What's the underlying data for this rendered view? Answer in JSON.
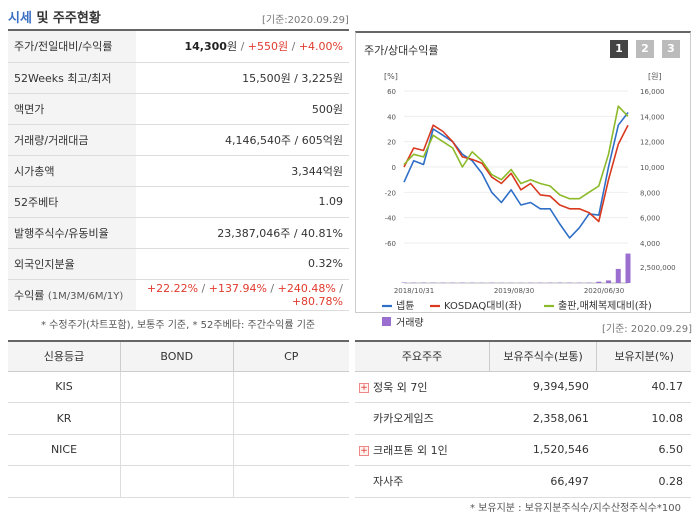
{
  "header": {
    "title_accent": "시세",
    "title_rest": " 및 주주현황",
    "date": "[기준:2020.09.29]"
  },
  "stats": [
    {
      "key": "stat-price",
      "label": "주가/전일대비/수익률",
      "price": "14,300",
      "unit": "원",
      "sep": " / ",
      "change": "+550원",
      "sep2": " / ",
      "rate": "+4.00%"
    },
    {
      "key": "stat-52w",
      "label": "52Weeks 최고/최저",
      "value": "15,500원 / 3,225원"
    },
    {
      "key": "stat-par",
      "label": "액면가",
      "value": "500원"
    },
    {
      "key": "stat-volume",
      "label": "거래량/거래대금",
      "value": "4,146,540주 / 605억원"
    },
    {
      "key": "stat-mktcap",
      "label": "시가총액",
      "value": "3,344억원"
    },
    {
      "key": "stat-beta",
      "label": "52주베타",
      "value": "1.09"
    },
    {
      "key": "stat-shares",
      "label": "발행주식수/유동비율",
      "value": "23,387,046주 / 40.81%"
    },
    {
      "key": "stat-foreign",
      "label": "외국인지분율",
      "value": "0.32%"
    },
    {
      "key": "stat-return",
      "label": "수익률",
      "label_sub": "(1M/3M/6M/1Y)",
      "r1": "+22.22%",
      "r2": "+137.94%",
      "r3": "+240.48%",
      "r4": "+80.78%",
      "sep": " / "
    }
  ],
  "note_left": "* 수정주가(차트포함), 보통주 기준, * 52주베타: 주간수익률 기준",
  "chart": {
    "title": "주가/상대수익률",
    "pages": [
      "1",
      "2",
      "3"
    ],
    "left_unit": "[%]",
    "right_unit": "[원]",
    "legend": {
      "s1": "넵튠",
      "s2": "KOSDAQ대비(좌)",
      "s3": "출판,매체복제대비(좌)",
      "s4": "거래량"
    },
    "colors": {
      "s1": "#2f6fc8",
      "s2": "#d9391f",
      "s3": "#8cba2a",
      "s4": "#9b6fd0"
    }
  },
  "chart_data": {
    "type": "line",
    "title": "주가/상대수익률",
    "x_labels": [
      "2018/10/31",
      "2019/08/30",
      "2020/06/30"
    ],
    "y_left": {
      "label": "%",
      "ticks": [
        60,
        40,
        20,
        0,
        -20,
        -40,
        -60
      ],
      "range": [
        -60,
        60
      ]
    },
    "y_right": {
      "label": "원",
      "ticks": [
        16000,
        14000,
        12000,
        10000,
        8000,
        6000,
        4000
      ],
      "range": [
        4000,
        16000
      ]
    },
    "y_volume": {
      "ticks": [
        2500000
      ],
      "range": [
        0,
        5000000
      ]
    },
    "series": [
      {
        "name": "넵튠",
        "axis": "left",
        "values": [
          -12,
          5,
          2,
          30,
          25,
          20,
          10,
          5,
          -5,
          -20,
          -28,
          -18,
          -30,
          -28,
          -33,
          -33,
          -45,
          -56,
          -48,
          -37,
          -38,
          0,
          33,
          43
        ]
      },
      {
        "name": "KOSDAQ대비(좌)",
        "axis": "left",
        "values": [
          0,
          15,
          13,
          33,
          28,
          20,
          8,
          6,
          3,
          -8,
          -13,
          -5,
          -18,
          -13,
          -22,
          -23,
          -30,
          -33,
          -33,
          -36,
          -43,
          -10,
          18,
          33
        ]
      },
      {
        "name": "출판,매체복제대비(좌)",
        "axis": "left",
        "values": [
          2,
          10,
          8,
          25,
          20,
          15,
          0,
          12,
          5,
          -6,
          -10,
          -2,
          -13,
          -10,
          -13,
          -15,
          -22,
          -25,
          -25,
          -20,
          -15,
          10,
          48,
          40
        ]
      },
      {
        "name": "거래량",
        "axis": "volume",
        "type": "bar",
        "values": [
          80000,
          60000,
          70000,
          60000,
          50000,
          50000,
          60000,
          50000,
          40000,
          50000,
          40000,
          40000,
          40000,
          50000,
          50000,
          60000,
          70000,
          60000,
          50000,
          60000,
          200000,
          400000,
          2200000,
          4600000
        ]
      }
    ]
  },
  "credit": {
    "headers": [
      "신용등급",
      "BOND",
      "CP"
    ],
    "rows": [
      [
        "KIS",
        "",
        ""
      ],
      [
        "KR",
        "",
        ""
      ],
      [
        "NICE",
        "",
        ""
      ],
      [
        "",
        "",
        ""
      ]
    ]
  },
  "holders": {
    "headers": [
      "주요주주",
      "보유주식수(보통)",
      "보유지분(%)"
    ],
    "rows": [
      {
        "name": "정욱 외 7인",
        "shares": "9,394,590",
        "pct": "40.17",
        "expand": true
      },
      {
        "name": "카카오게임즈",
        "shares": "2,358,061",
        "pct": "10.08",
        "expand": false
      },
      {
        "name": "크래프톤 외 1인",
        "shares": "1,520,546",
        "pct": "6.50",
        "expand": true
      },
      {
        "name": "자사주",
        "shares": "66,497",
        "pct": "0.28",
        "expand": false
      }
    ],
    "date": "[기준: 2020.09.29]",
    "note": "* 보유지분 : 보유지분주식수/지수산정주식수*100"
  }
}
